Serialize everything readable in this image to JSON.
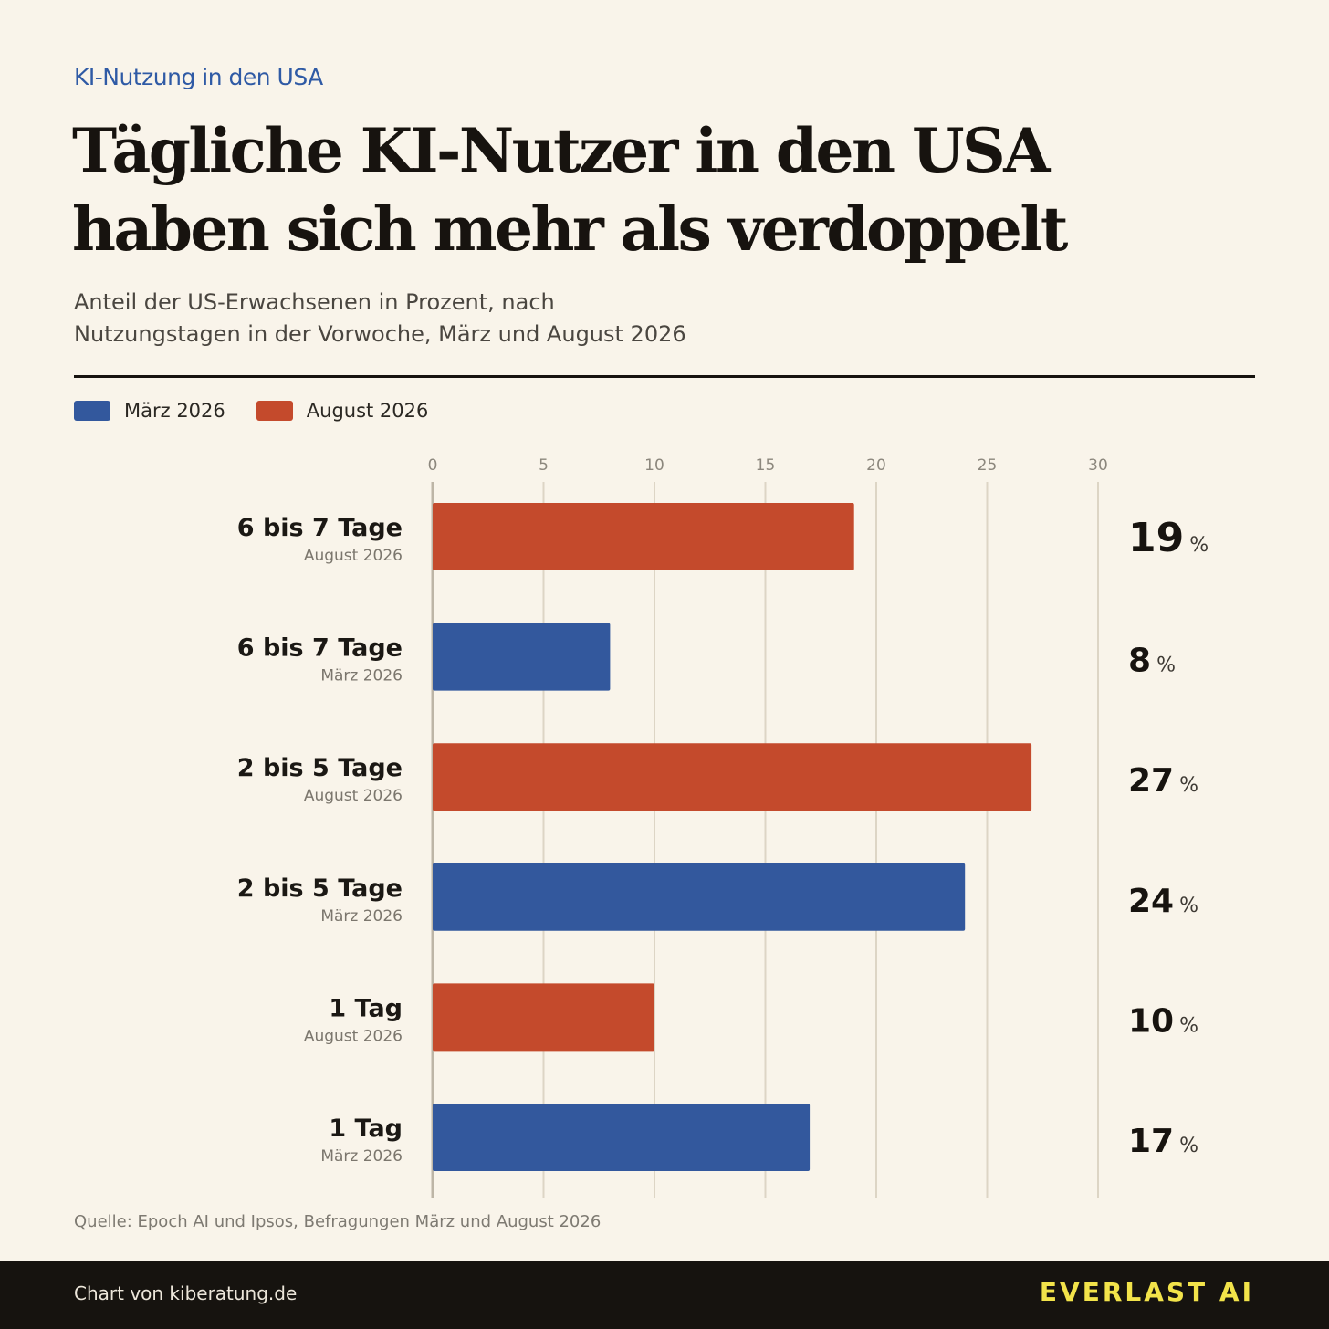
{
  "header": {
    "kicker": "KI-Nutzung in den USA",
    "title": "Tägliche KI-Nutzer in den USA haben sich mehr als verdoppelt",
    "subtitle_line1": "Anteil der US-Erwachsenen in Prozent, nach",
    "subtitle_line2": "Nutzungstagen in der Vorwoche, März und August 2026"
  },
  "legend": [
    {
      "label": "März 2026",
      "color": "#33589d"
    },
    {
      "label": "August 2026",
      "color": "#c44a2c"
    }
  ],
  "chart_data": {
    "type": "bar",
    "orientation": "horizontal",
    "xlim": [
      0,
      30
    ],
    "xticks": [
      "0",
      "5",
      "10",
      "15",
      "20",
      "25",
      "30"
    ],
    "grid": true,
    "legend_position": "top-left",
    "unit": "%",
    "rows": [
      {
        "category": "6 bis 7 Tage",
        "series": "August 2026",
        "value": 19
      },
      {
        "category": "6 bis 7 Tage",
        "series": "März 2026",
        "value": 8
      },
      {
        "category": "2 bis 5 Tage",
        "series": "August 2026",
        "value": 27
      },
      {
        "category": "2 bis 5 Tage",
        "series": "März 2026",
        "value": 24
      },
      {
        "category": "1 Tag",
        "series": "August 2026",
        "value": 10
      },
      {
        "category": "1 Tag",
        "series": "März 2026",
        "value": 17
      }
    ],
    "series_colors": {
      "März 2026": "#33589d",
      "August 2026": "#c44a2c"
    }
  },
  "source": "Quelle: Epoch AI und Ipsos, Befragungen März und August 2026",
  "footer": {
    "credit": "Chart von kiberatung.de",
    "brand": "EVERLAST AI"
  }
}
